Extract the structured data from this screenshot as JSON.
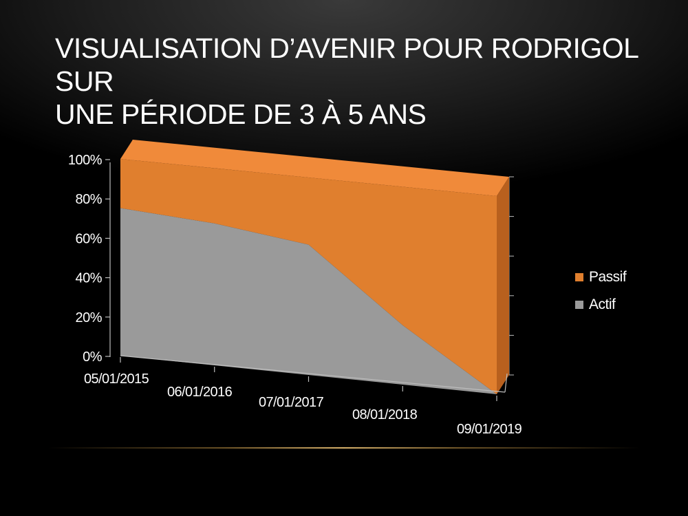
{
  "title": {
    "line1": "VISUALISATION D’AVENIR POUR RODRIGOL SUR",
    "line2": "UNE PÉRIODE DE 3 À 5 ANS"
  },
  "colors": {
    "passif": "#e07f2e",
    "actif": "#9a9a9a",
    "background": "#000000",
    "text": "#ffffff"
  },
  "chart_data": {
    "type": "area",
    "stacked": "percent",
    "view": "3d-perspective",
    "categories": [
      "05/01/2015",
      "06/01/2016",
      "07/01/2017",
      "08/01/2018",
      "09/01/2019"
    ],
    "series": [
      {
        "name": "Actif",
        "values": [
          75,
          72,
          66,
          30,
          0
        ]
      },
      {
        "name": "Passif",
        "values": [
          25,
          28,
          34,
          70,
          100
        ]
      }
    ],
    "y_ticks": [
      "0%",
      "20%",
      "40%",
      "60%",
      "80%",
      "100%"
    ],
    "ylim": [
      0,
      100
    ],
    "legend": "right",
    "grid": false
  }
}
